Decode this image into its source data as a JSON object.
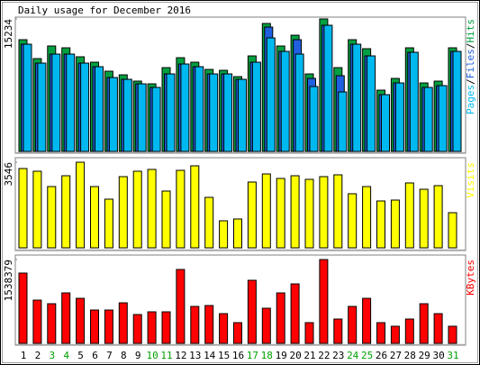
{
  "chart_data": [
    {
      "type": "bar",
      "title": "Daily usage for December 2016",
      "legend_separator": "/",
      "ylim": [
        0,
        15234
      ],
      "yticks": [
        15234
      ],
      "series": [
        {
          "name": "Hits",
          "color": "#00a040",
          "values": [
            12847,
            10672,
            12123,
            11914,
            10880,
            10257,
            9221,
            8806,
            8081,
            7770,
            9635,
            10775,
            10257,
            9428,
            9324,
            8599,
            10982,
            14711,
            12123,
            13365,
            8910,
            15234,
            9635,
            12847,
            11811,
            7045,
            8392,
            11914,
            7874,
            8081,
            11914
          ]
        },
        {
          "name": "Files",
          "color": "#2060e0",
          "values": [
            12328,
            10153,
            11189,
            11189,
            10153,
            9738,
            8495,
            8288,
            7770,
            7356,
            8910,
            10049,
            9738,
            8910,
            8910,
            8288,
            10256,
            14297,
            11500,
            12846,
            8392,
            14504,
            8702,
            12328,
            10982,
            6527,
            7874,
            11396,
            7356,
            7563,
            11500
          ]
        },
        {
          "name": "Pages",
          "color": "#00b8f0",
          "values": [
            12328,
            10153,
            11189,
            11189,
            10153,
            9738,
            8495,
            8288,
            7770,
            7356,
            8910,
            10049,
            9738,
            8910,
            8910,
            8288,
            10256,
            13054,
            11500,
            11189,
            7459,
            14504,
            6838,
            12328,
            10982,
            6527,
            7874,
            11396,
            7356,
            7563,
            11500
          ]
        }
      ]
    },
    {
      "type": "bar",
      "ylim": [
        0,
        3546
      ],
      "yticks": [
        3546
      ],
      "series": [
        {
          "name": "Visits",
          "color": "#ffff00",
          "values": [
            3285,
            3173,
            2538,
            2986,
            3546,
            2538,
            2016,
            2949,
            3173,
            3248,
            2352,
            3210,
            3397,
            2090,
            1120,
            1195,
            2725,
            3061,
            2874,
            2986,
            2837,
            2949,
            3024,
            2240,
            2538,
            1941,
            1978,
            2688,
            2426,
            2576,
            1456
          ]
        }
      ]
    },
    {
      "type": "bar",
      "ylim": [
        0,
        1538379
      ],
      "yticks": [
        1538379
      ],
      "series": [
        {
          "name": "KBytes",
          "color": "#ff0000",
          "values": [
            1290198,
            793968,
            727804,
            926296,
            827050,
            612017,
            612017,
            744345,
            529312,
            578935,
            578935,
            1356362,
            678181,
            694722,
            545853,
            380443,
            1157870,
            645099,
            926296,
            1091706,
            380443,
            1538379,
            446607,
            678181,
            827050,
            380443,
            314279,
            446607,
            727804,
            545853,
            314279
          ]
        }
      ],
      "categories": [
        "1",
        "2",
        "3",
        "4",
        "5",
        "6",
        "7",
        "8",
        "9",
        "10",
        "11",
        "12",
        "13",
        "14",
        "15",
        "16",
        "17",
        "18",
        "19",
        "20",
        "21",
        "22",
        "23",
        "24",
        "25",
        "26",
        "27",
        "28",
        "29",
        "30",
        "31"
      ],
      "category_colors": [
        "#000000",
        "#000000",
        "#00a000",
        "#00a000",
        "#000000",
        "#000000",
        "#000000",
        "#000000",
        "#000000",
        "#00a000",
        "#00a000",
        "#000000",
        "#000000",
        "#000000",
        "#000000",
        "#000000",
        "#00a000",
        "#00a000",
        "#000000",
        "#000000",
        "#000000",
        "#000000",
        "#000000",
        "#00a000",
        "#00a000",
        "#000000",
        "#000000",
        "#000000",
        "#000000",
        "#000000",
        "#00a000"
      ]
    }
  ]
}
